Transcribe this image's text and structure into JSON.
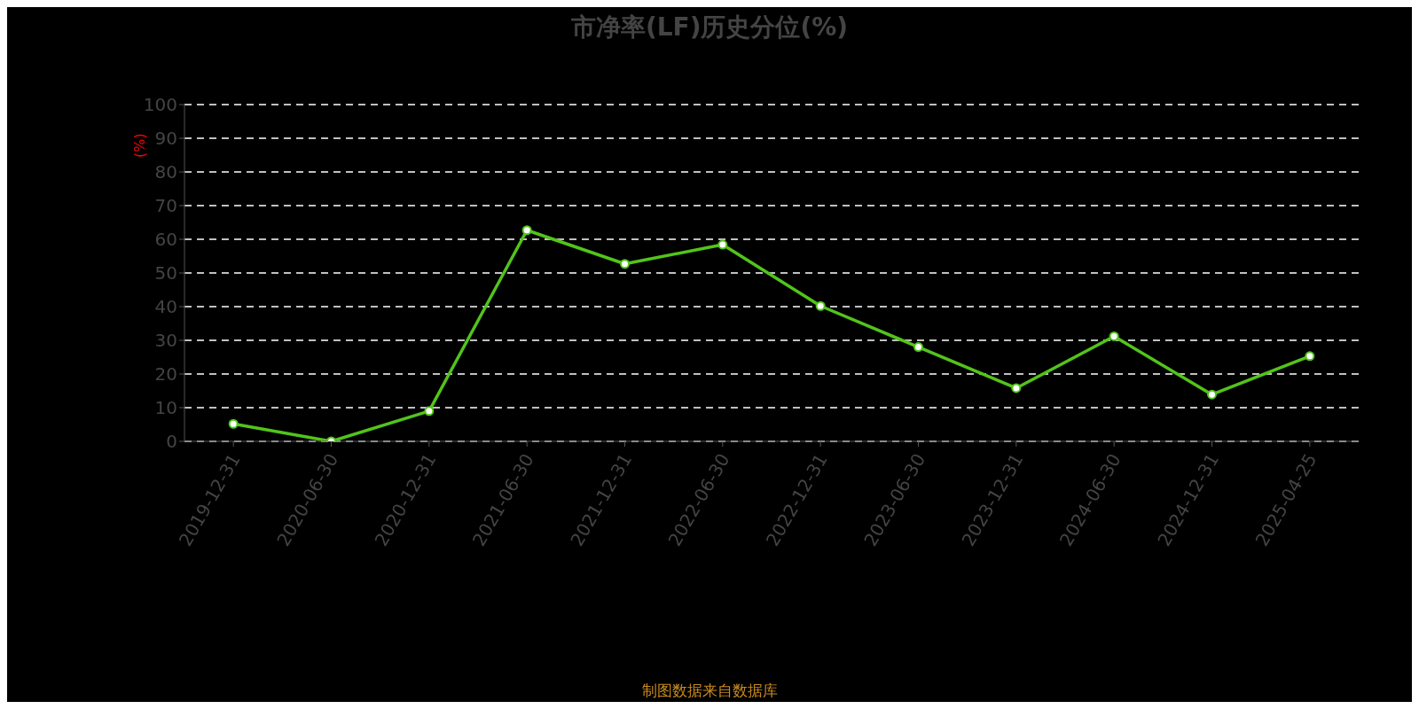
{
  "chart_data": {
    "type": "line",
    "title": "市净率(LF)历史分位(%)",
    "ylabel": "(%)",
    "categories": [
      "2019-12-31",
      "2020-06-30",
      "2020-12-31",
      "2021-06-30",
      "2021-12-31",
      "2022-06-30",
      "2022-12-31",
      "2023-06-30",
      "2023-12-31",
      "2024-06-30",
      "2024-12-31",
      "2025-04-25"
    ],
    "series": [
      {
        "color": "#52c41a",
        "values": [
          5.2,
          0,
          9,
          62.7,
          52.7,
          58.4,
          40.2,
          28,
          15.8,
          31.2,
          13.9,
          25.3
        ]
      }
    ],
    "ylim": [
      0,
      100
    ],
    "yticks": [
      0,
      10,
      20,
      30,
      40,
      50,
      60,
      70,
      80,
      90,
      100
    ],
    "grid": "y",
    "marker": "circle",
    "line_style": "solid",
    "legend": false,
    "annotations": [
      "制图数据来自数据库"
    ]
  }
}
